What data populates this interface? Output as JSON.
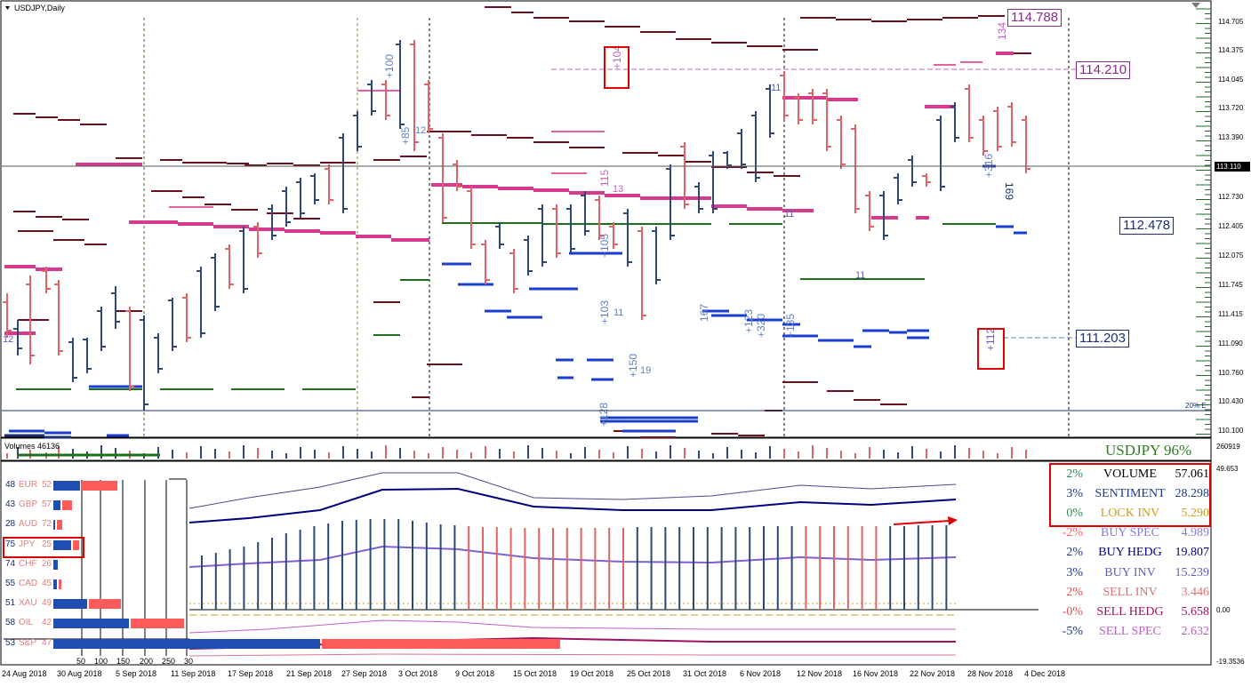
{
  "chart_title": "USDJPY,Daily",
  "volumes_label": "Volumes 46136",
  "volume_axis_value": "260919",
  "indicator_title": "USDJPY 96%",
  "price_axis": [
    "114.705",
    "114.375",
    "114.045",
    "113.720",
    "113.390",
    "112.730",
    "112.405",
    "112.075",
    "111.745",
    "111.415",
    "111.090",
    "110.760",
    "110.430",
    "110.100"
  ],
  "current_price": "113.110",
  "price_boxes": [
    {
      "label": "114.788",
      "color": "#8a2d8a"
    },
    {
      "label": "114.210",
      "color": "#8a2d8a"
    },
    {
      "label": "112.478",
      "color": "#1c2f6e"
    },
    {
      "label": "111.203",
      "color": "#1c2f6e"
    }
  ],
  "pct_marker": "20% E",
  "dates": [
    "24 Aug 2018",
    "30 Aug 2018",
    "5 Sep 2018",
    "11 Sep 2018",
    "17 Sep 2018",
    "21 Sep 2018",
    "27 Sep 2018",
    "3 Oct 2018",
    "9 Oct 2018",
    "15 Oct 2018",
    "19 Oct 2018",
    "25 Oct 2018",
    "31 Oct 2018",
    "6 Nov 2018",
    "12 Nov 2018",
    "16 Nov 2018",
    "22 Nov 2018",
    "28 Nov 2018",
    "4 Dec 2018"
  ],
  "indicator_axis": {
    "top": "49.653",
    "zero": "0.00",
    "bottom": "-19.3536"
  },
  "chart_annotations": [
    "+104",
    "+112",
    "+100",
    "+85",
    "12",
    "+105",
    "+103",
    "11",
    "+150",
    "19",
    "13",
    "115",
    "11",
    "167",
    "+123",
    "+320",
    "+135",
    "11",
    "+316",
    "169",
    "134",
    "11",
    "12",
    "+128"
  ],
  "currencies": [
    {
      "left": "48",
      "code": "EUR",
      "right": "52",
      "blue": 30,
      "red": 40
    },
    {
      "left": "43",
      "code": "GBP",
      "right": "57",
      "blue": 8,
      "red": 11
    },
    {
      "left": "28",
      "code": "AUD",
      "right": "72",
      "blue": 2,
      "red": 6
    },
    {
      "left": "75",
      "code": "JPY",
      "right": "25",
      "blue": 20,
      "red": 7
    },
    {
      "left": "74",
      "code": "CHF",
      "right": "26",
      "blue": 5,
      "red": 0
    },
    {
      "left": "55",
      "code": "CAD",
      "right": "45",
      "blue": 4,
      "red": 3
    },
    {
      "left": "51",
      "code": "XAU",
      "right": "49",
      "blue": 38,
      "red": 36
    },
    {
      "left": "58",
      "code": "OIL",
      "right": "42",
      "blue": 85,
      "red": 60
    },
    {
      "left": "53",
      "code": "S&P",
      "right": "47",
      "blue": 300,
      "red": 268
    }
  ],
  "scale_labels": [
    "50",
    "100",
    "150",
    "200",
    "250",
    "30"
  ],
  "stats": [
    {
      "pct": "2%",
      "name": "VOLUME",
      "value": "57.061",
      "pct_color": "#2e8b57",
      "name_color": "#000000",
      "value_color": "#000000"
    },
    {
      "pct": "3%",
      "name": "SENTIMENT",
      "value": "28.298",
      "pct_color": "#1a3c8c",
      "name_color": "#1a3c8c",
      "value_color": "#1a3c8c"
    },
    {
      "pct": "0%",
      "name": "LOCK INV",
      "value": "5.290",
      "pct_color": "#2e8b57",
      "name_color": "#c8a020",
      "value_color": "#c8a020"
    },
    {
      "pct": "-2%",
      "name": "BUY SPEC",
      "value": "4.989",
      "pct_color": "#ff6060",
      "name_color": "#8080d0",
      "value_color": "#8080d0"
    },
    {
      "pct": "2%",
      "name": "BUY HEDG",
      "value": "19.807",
      "pct_color": "#1a3c8c",
      "name_color": "#000080",
      "value_color": "#000080"
    },
    {
      "pct": "3%",
      "name": "BUY INV",
      "value": "15.239",
      "pct_color": "#1a3c8c",
      "name_color": "#6060c0",
      "value_color": "#6060c0"
    },
    {
      "pct": "2%",
      "name": "SELL INV",
      "value": "3.446",
      "pct_color": "#e05050",
      "name_color": "#e07070",
      "value_color": "#e07070"
    },
    {
      "pct": "-0%",
      "name": "SELL HEDG",
      "value": "5.658",
      "pct_color": "#e05050",
      "name_color": "#a01060",
      "value_color": "#a01060"
    },
    {
      "pct": "-5%",
      "name": "SELL SPEC",
      "value": "2.632",
      "pct_color": "#1a3c8c",
      "name_color": "#c060c0",
      "value_color": "#c060c0"
    }
  ]
}
